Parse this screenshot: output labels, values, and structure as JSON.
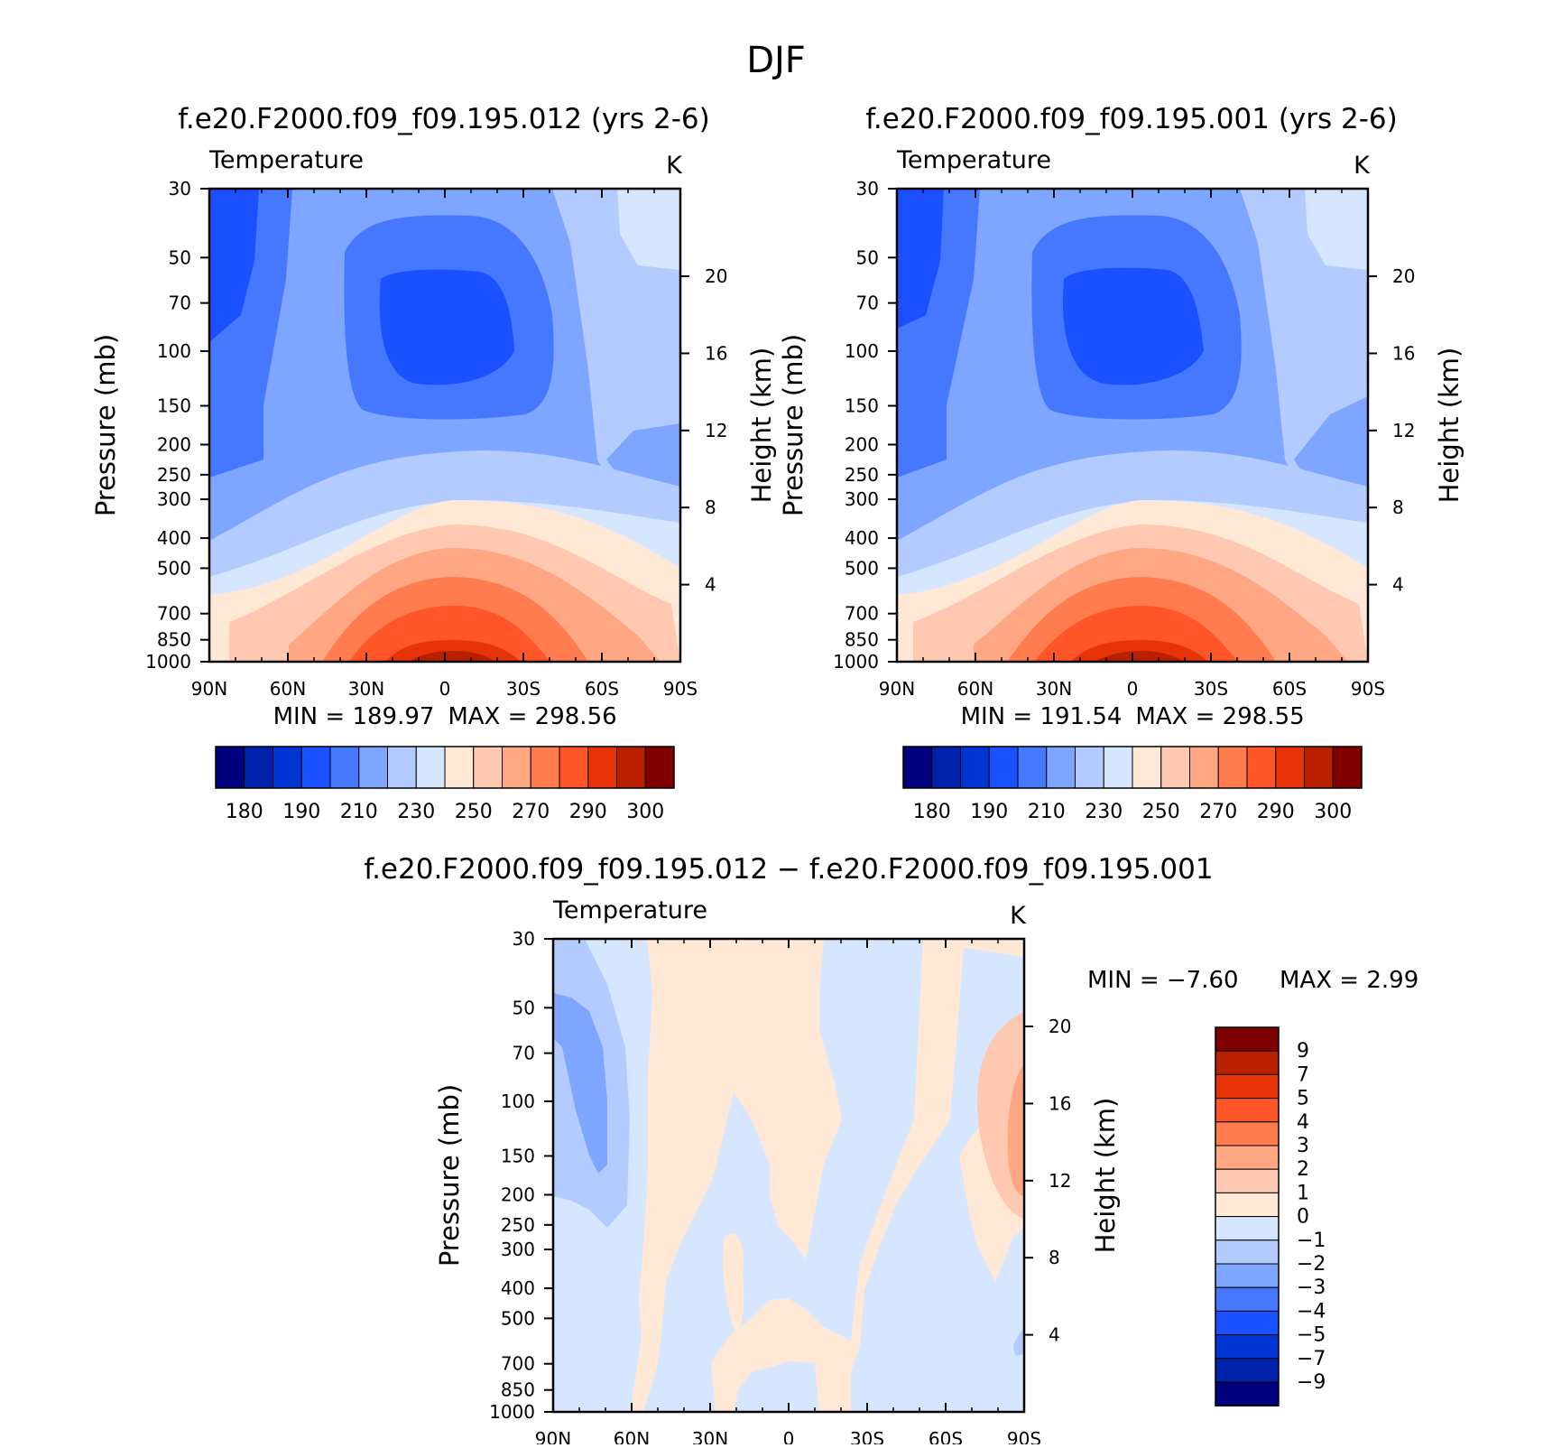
{
  "main_title": "DJF",
  "chart_data": [
    {
      "type": "heatmap",
      "title": "f.e20.F2000.f09_f09.195.012 (yrs 2-6)",
      "variable": "Temperature",
      "units": "K",
      "ylabel": "Pressure (mb)",
      "y2label": "Height (km)",
      "x_ticks": [
        "90N",
        "60N",
        "30N",
        "0",
        "30S",
        "60S",
        "90S"
      ],
      "y_ticks": [
        "30",
        "50",
        "70",
        "100",
        "150",
        "200",
        "250",
        "300",
        "400",
        "500",
        "700",
        "850",
        "1000"
      ],
      "y2_ticks": [
        "20",
        "16",
        "12",
        "8",
        "4"
      ],
      "min_label": "MIN = 189.97",
      "max_label": "MAX = 298.56",
      "colorbar_levels": [
        "180",
        "190",
        "210",
        "230",
        "250",
        "270",
        "290",
        "300"
      ],
      "ylim": [
        1000,
        30
      ]
    },
    {
      "type": "heatmap",
      "title": "f.e20.F2000.f09_f09.195.001 (yrs 2-6)",
      "variable": "Temperature",
      "units": "K",
      "ylabel": "Pressure (mb)",
      "y2label": "Height (km)",
      "x_ticks": [
        "90N",
        "60N",
        "30N",
        "0",
        "30S",
        "60S",
        "90S"
      ],
      "y_ticks": [
        "30",
        "50",
        "70",
        "100",
        "150",
        "200",
        "250",
        "300",
        "400",
        "500",
        "700",
        "850",
        "1000"
      ],
      "y2_ticks": [
        "20",
        "16",
        "12",
        "8",
        "4"
      ],
      "min_label": "MIN = 191.54",
      "max_label": "MAX = 298.55",
      "colorbar_levels": [
        "180",
        "190",
        "210",
        "230",
        "250",
        "270",
        "290",
        "300"
      ],
      "ylim": [
        1000,
        30
      ]
    },
    {
      "type": "heatmap",
      "title": "f.e20.F2000.f09_f09.195.012 − f.e20.F2000.f09_f09.195.001",
      "variable": "Temperature",
      "units": "K",
      "ylabel": "Pressure (mb)",
      "y2label": "Height (km)",
      "x_ticks": [
        "90N",
        "60N",
        "30N",
        "0",
        "30S",
        "60S",
        "90S"
      ],
      "y_ticks": [
        "30",
        "50",
        "70",
        "100",
        "150",
        "200",
        "250",
        "300",
        "400",
        "500",
        "700",
        "850",
        "1000"
      ],
      "y2_ticks": [
        "20",
        "16",
        "12",
        "8",
        "4"
      ],
      "min_label": "MIN = −7.60",
      "max_label": "MAX = 2.99",
      "colorbar_levels": [
        "9",
        "7",
        "5",
        "4",
        "3",
        "2",
        "1",
        "0",
        "−1",
        "−2",
        "−3",
        "−4",
        "−5",
        "−7",
        "−9"
      ],
      "ylim": [
        1000,
        30
      ]
    }
  ],
  "colors": {
    "temp_scale": [
      "#00007f",
      "#0022aa",
      "#0035d4",
      "#1a50ff",
      "#4678ff",
      "#7ea5ff",
      "#b4cbff",
      "#d6e6ff",
      "#ffe8d6",
      "#ffc8b0",
      "#ffa682",
      "#ff7c4e",
      "#ff5528",
      "#e63408",
      "#b82000",
      "#7f0000"
    ],
    "diff_scale": [
      "#7f0000",
      "#b82000",
      "#e63408",
      "#ff5528",
      "#ff7c4e",
      "#ffa682",
      "#ffc8b0",
      "#ffe8d6",
      "#d6e6ff",
      "#b4cbff",
      "#7ea5ff",
      "#4678ff",
      "#1a50ff",
      "#0035d4",
      "#0022aa",
      "#00007f"
    ]
  }
}
